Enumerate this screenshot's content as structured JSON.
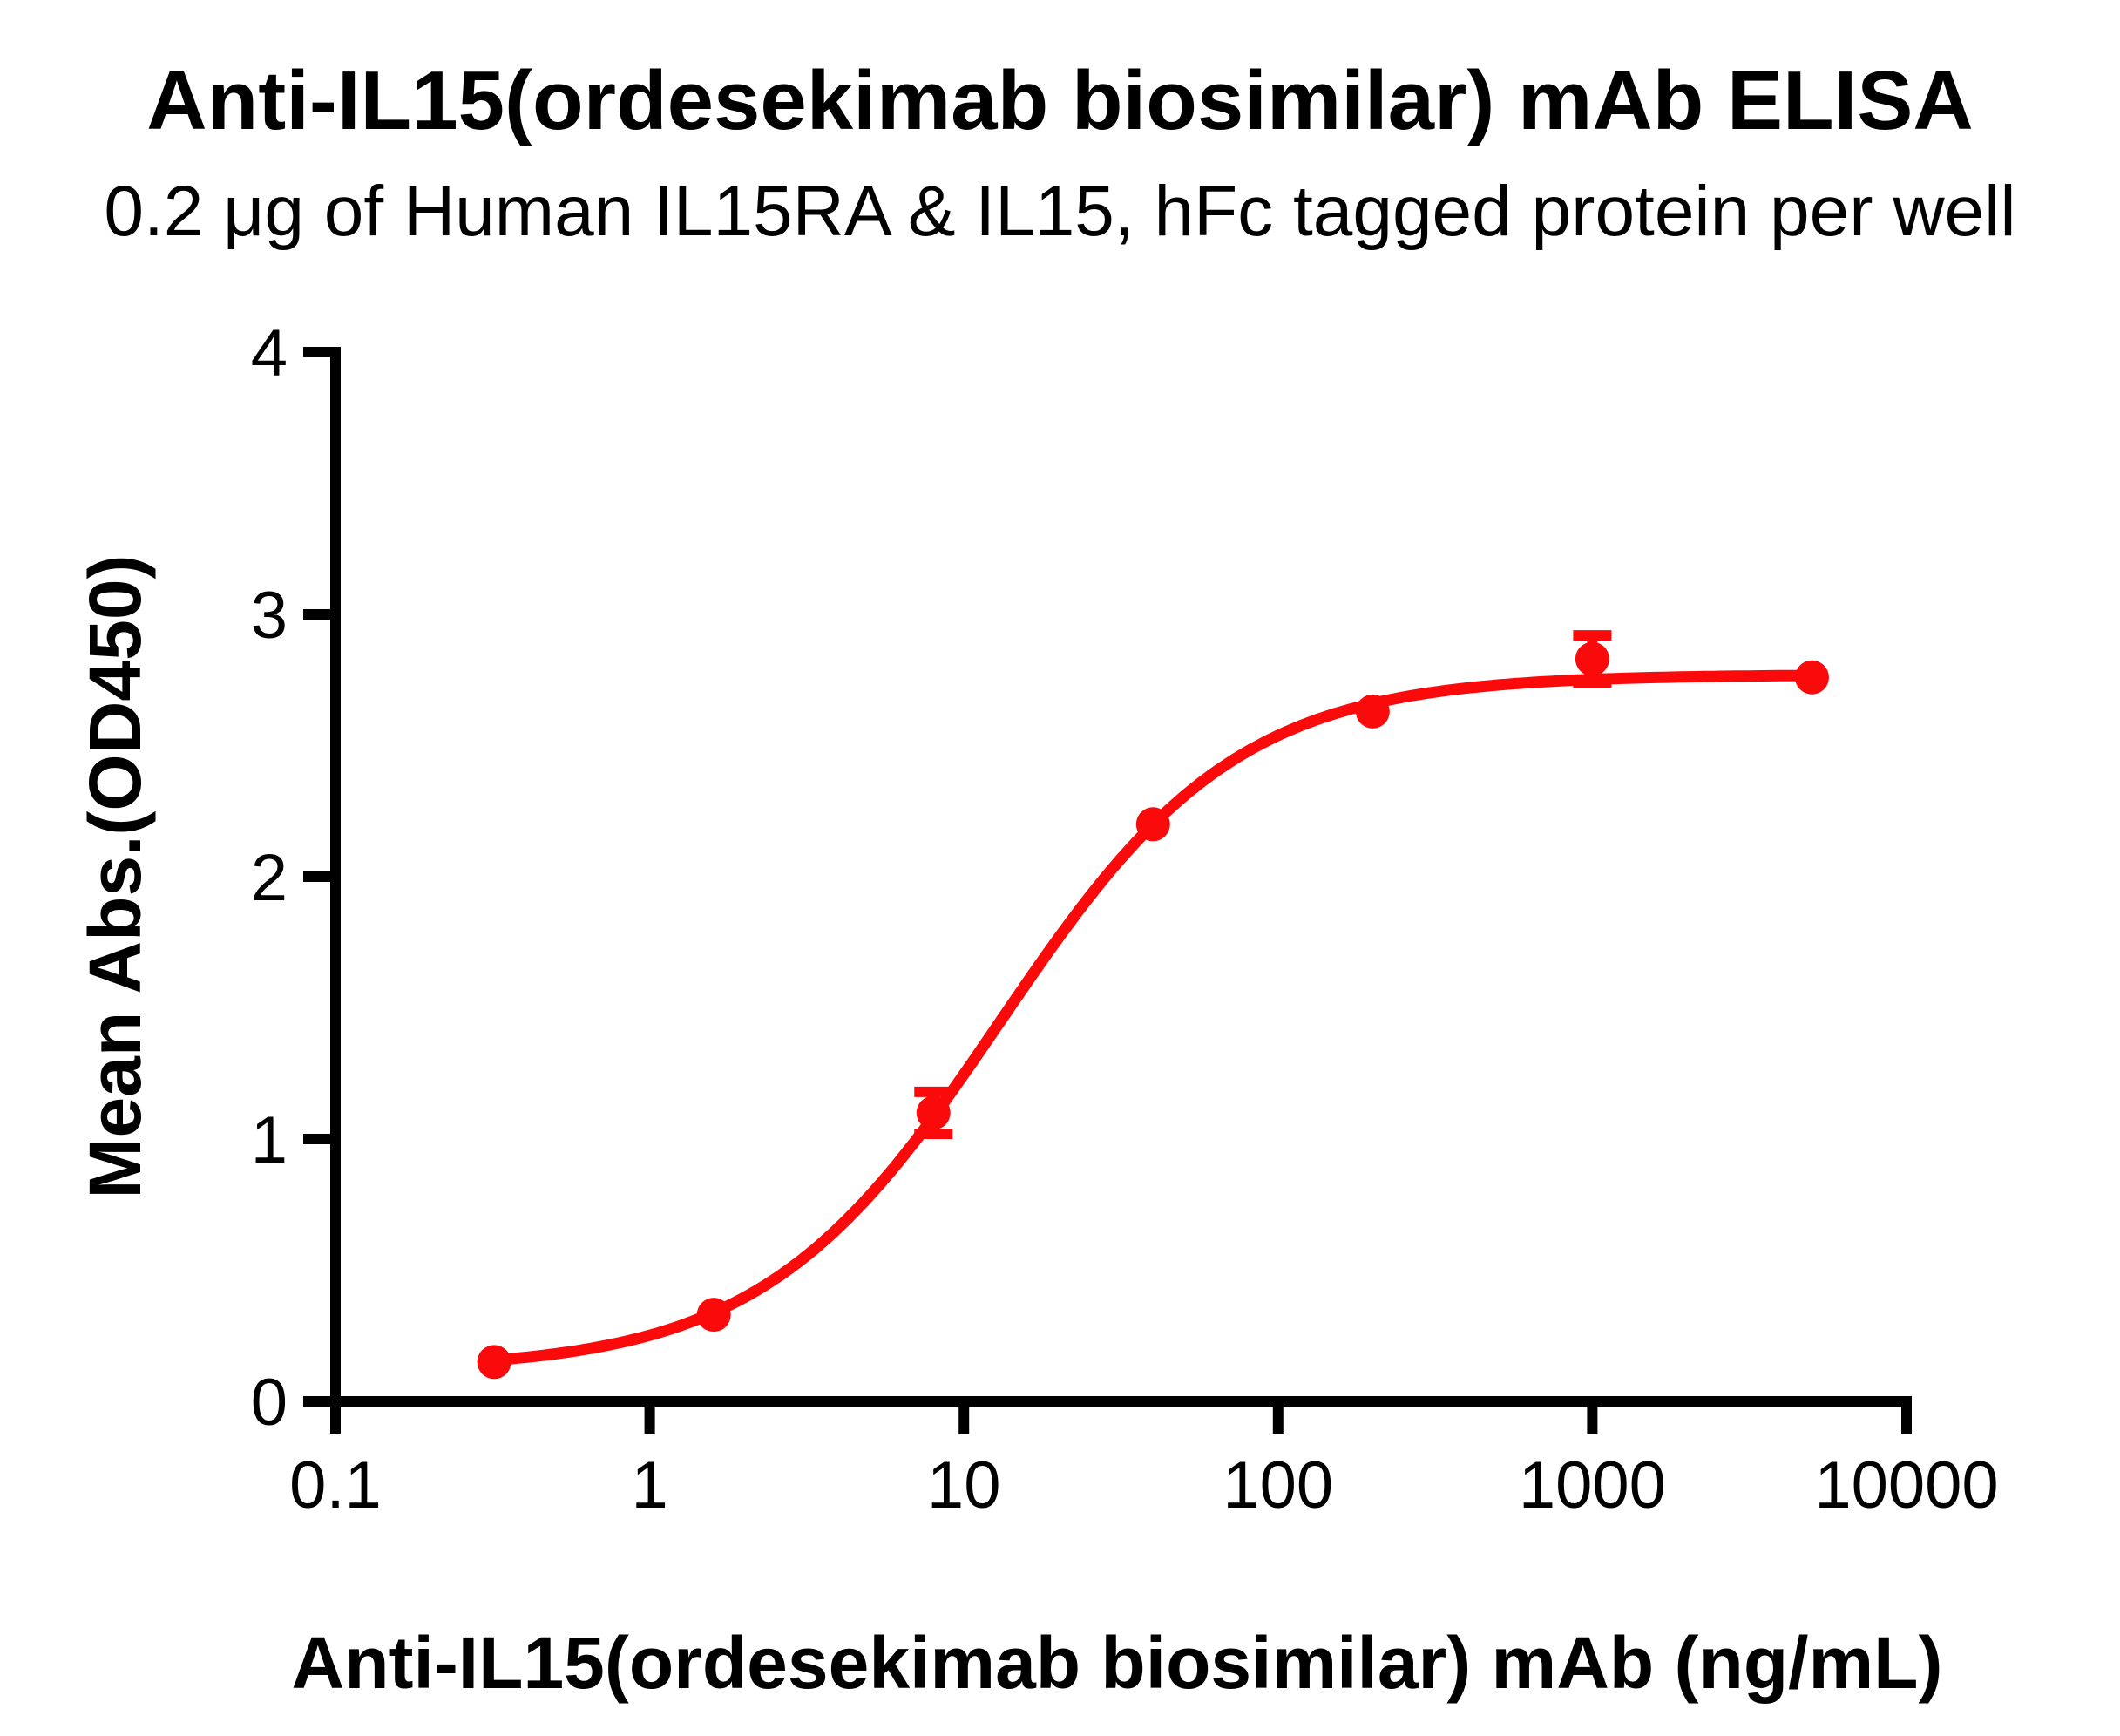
{
  "chart": {
    "title": "Anti-IL15(ordesekimab biosimilar) mAb ELISA",
    "subtitle": "0.2 μg of Human IL15RA & IL15, hFc tagged protein per well",
    "xlabel": "Anti-IL15(ordesekimab biosimilar) mAb (ng/mL)",
    "ylabel": "Mean Abs.(OD450)"
  },
  "chart_data": {
    "type": "scatter",
    "title": "Anti-IL15(ordesekimab biosimilar) mAb ELISA",
    "subtitle": "0.2 μg of Human IL15RA & IL15, hFc tagged protein per well",
    "xlabel": "Anti-IL15(ordesekimab biosimilar) mAb (ng/mL)",
    "ylabel": "Mean Abs.(OD450)",
    "x_scale": "log10",
    "xlim": [
      0.1,
      10000
    ],
    "ylim": [
      0,
      4
    ],
    "x_ticks": [
      0.1,
      1,
      10,
      100,
      1000,
      10000
    ],
    "x_tick_labels": [
      "0.1",
      "1",
      "10",
      "100",
      "1000",
      "10000"
    ],
    "y_ticks": [
      0,
      1,
      2,
      3,
      4
    ],
    "y_tick_labels": [
      "0",
      "1",
      "2",
      "3",
      "4"
    ],
    "grid": false,
    "legend": "none",
    "marker": "circle",
    "series": [
      {
        "name": "Anti-IL15(ordesekimab biosimilar) mAb",
        "color": "#FA0A0A",
        "x": [
          0.32,
          1.6,
          8,
          40,
          200,
          1000,
          5000
        ],
        "y": [
          0.15,
          0.33,
          1.1,
          2.2,
          2.63,
          2.83,
          2.76
        ],
        "y_err": [
          0,
          0,
          0.08,
          0,
          0,
          0.09,
          0
        ]
      }
    ],
    "fit_curve": {
      "model": "4PL",
      "bottom": 0.12,
      "top": 2.77,
      "ec50": 13,
      "hill": 1.15,
      "x_start": 0.32,
      "x_end": 5000
    },
    "axis_color": "#000000"
  }
}
